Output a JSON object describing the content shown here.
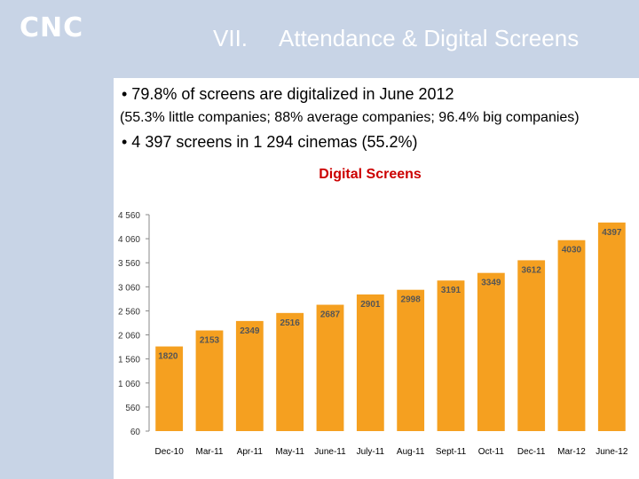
{
  "header": {
    "logo": "CNC",
    "section_number": "VII.",
    "title": "Attendance & Digital Screens"
  },
  "content": {
    "bullet1": "•  79.8% of screens are digitalized in June 2012",
    "sub": "(55.3% little companies; 88% average companies; 96.4% big companies)",
    "bullet2": "•  4 397 screens in 1 294 cinemas (55.2%)"
  },
  "colors": {
    "bar": "#f5a020",
    "header_bg": "#c8d4e6",
    "chart_title": "#cc0000"
  },
  "chart_data": {
    "type": "bar",
    "title": "Digital Screens",
    "categories": [
      "Dec-10",
      "Mar-11",
      "Apr-11",
      "May-11",
      "June-11",
      "July-11",
      "Aug-11",
      "Sept-11",
      "Oct-11",
      "Dec-11",
      "Mar-12",
      "June-12"
    ],
    "values": [
      1820,
      2153,
      2349,
      2516,
      2687,
      2901,
      2998,
      3191,
      3349,
      3612,
      4030,
      4397
    ],
    "yticks": [
      60,
      560,
      1060,
      1560,
      2060,
      2560,
      3060,
      3560,
      4060,
      4560
    ],
    "ytick_labels": [
      "60",
      "560",
      "1 060",
      "1 560",
      "2 060",
      "2 560",
      "3 060",
      "3 560",
      "4 060",
      "4 560"
    ],
    "ylim": [
      60,
      4560
    ],
    "grid": false,
    "legend": "none"
  }
}
